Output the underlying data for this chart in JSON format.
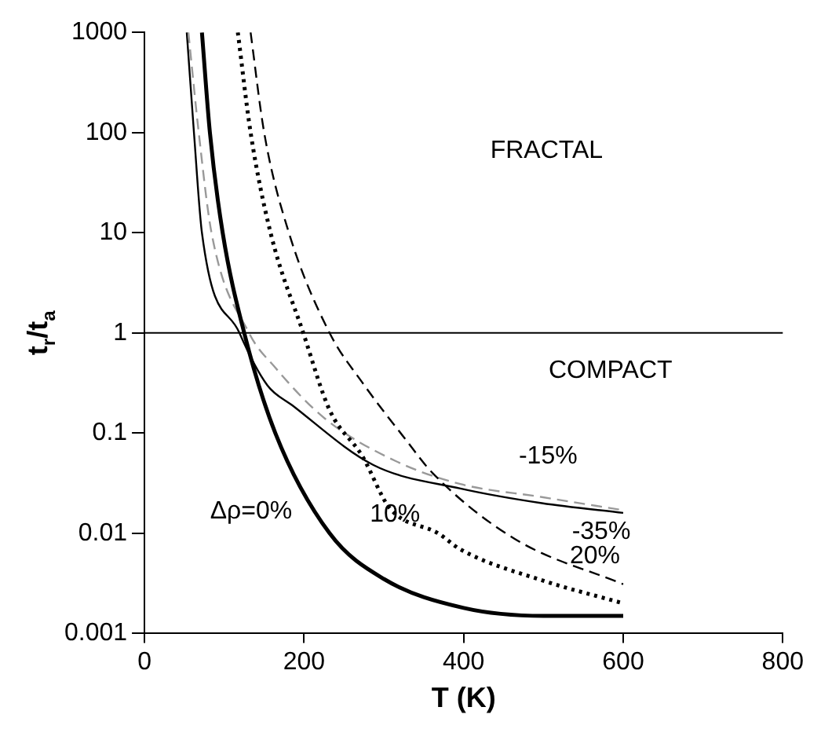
{
  "chart_data": {
    "type": "line",
    "xlabel": "T (K)",
    "ylabel": "t$_{r}$/t$_{a}$",
    "xlim": [
      0,
      800
    ],
    "xticks": [
      0,
      200,
      400,
      600,
      800
    ],
    "ylim": [
      0.001,
      1000
    ],
    "yticks": [
      0.001,
      0.01,
      0.1,
      1,
      10,
      100,
      1000
    ],
    "log": "y",
    "grid": false,
    "legend": false,
    "marker": "none",
    "series": [
      {
        "name": "Δρ=0%",
        "color": "#000000",
        "line_style": "solid",
        "x": [
          72,
          82,
          98,
          125,
          164,
          232,
          300,
          400,
          500,
          600
        ],
        "values": [
          1000,
          100,
          10,
          1,
          0.1,
          0.01,
          0.0035,
          0.0018,
          0.0015,
          0.0015
        ]
      },
      {
        "name": "10%",
        "color": "#000000",
        "line_style": "dotted",
        "x": [
          117,
          133,
          158,
          199,
          232,
          273,
          307,
          369,
          396,
          498,
          600
        ],
        "values": [
          1000,
          100,
          10,
          1,
          0.17,
          0.059,
          0.018,
          0.0099,
          0.0069,
          0.0034,
          0.002
        ]
      },
      {
        "name": "20%",
        "color": "#000000",
        "line_style": "dashed",
        "x": [
          133,
          150,
          181,
          232,
          273,
          328,
          361,
          464,
          600
        ],
        "values": [
          1000,
          100,
          10,
          1,
          0.32,
          0.085,
          0.04,
          0.0088,
          0.0031
        ]
      },
      {
        "name": "-15%",
        "color": "#999999",
        "line_style": "dashed",
        "x": [
          55,
          68,
          84,
          131,
          164,
          226,
          314,
          396,
          498,
          600
        ],
        "values": [
          1000,
          100,
          10,
          1,
          0.45,
          0.14,
          0.053,
          0.031,
          0.023,
          0.017
        ]
      },
      {
        "name": "-35%",
        "color": "#000000",
        "line_style": "solid",
        "x": [
          53,
          62,
          72,
          119,
          154,
          185,
          287,
          396,
          498,
          600
        ],
        "values": [
          1000,
          100,
          10,
          1,
          0.3,
          0.19,
          0.048,
          0.028,
          0.02,
          0.016
        ]
      }
    ],
    "ref_lines": [
      {
        "axis": "y",
        "value": 1,
        "color": "#000000"
      }
    ],
    "annotations": [
      "FRACTAL",
      "COMPACT"
    ]
  }
}
